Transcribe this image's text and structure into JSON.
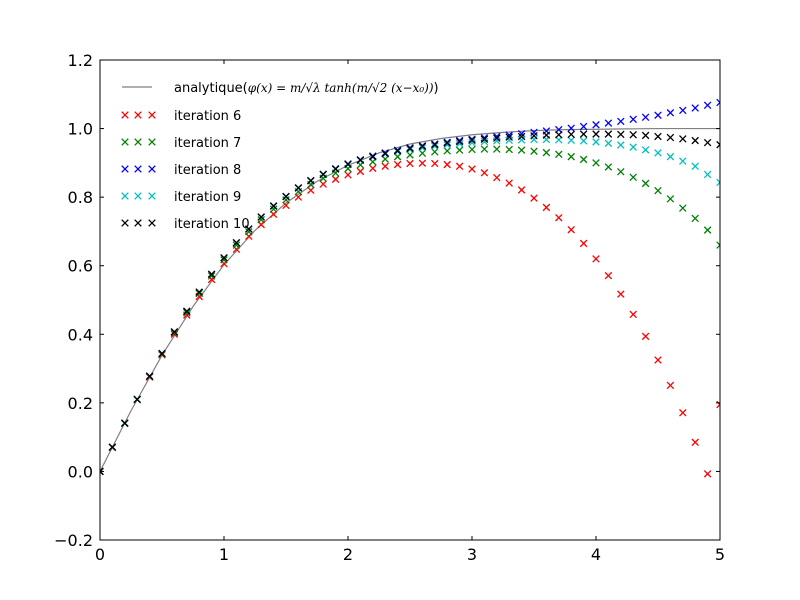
{
  "chart_data": {
    "type": "scatter",
    "xlim": [
      0,
      5
    ],
    "ylim": [
      -0.2,
      1.2
    ],
    "x_ticks": [
      0,
      1,
      2,
      3,
      4,
      5
    ],
    "y_ticks": [
      -0.2,
      0.0,
      0.2,
      0.4,
      0.6,
      0.8,
      1.0,
      1.2
    ],
    "x_tick_labels": [
      "0",
      "1",
      "2",
      "3",
      "4",
      "5"
    ],
    "y_tick_labels": [
      "−0.2",
      "0.0",
      "0.2",
      "0.4",
      "0.6",
      "0.8",
      "1.0",
      "1.2"
    ],
    "grid": false,
    "legend_position": "top-left",
    "analytic": {
      "label_prefix": "analytique(",
      "label_math": "φ(x) = m/√λ tanh(m/√2 (x−x₀))",
      "label_suffix": ")",
      "color": "#808080",
      "x": [
        0,
        0.25,
        0.5,
        0.75,
        1.0,
        1.25,
        1.5,
        1.75,
        2.0,
        2.25,
        2.5,
        2.75,
        3.0,
        3.25,
        3.5,
        3.75,
        4.0,
        4.25,
        4.5,
        4.75,
        5.0
      ],
      "y": [
        0.0,
        0.177,
        0.339,
        0.481,
        0.603,
        0.703,
        0.783,
        0.846,
        0.893,
        0.929,
        0.955,
        0.971,
        0.982,
        0.989,
        0.994,
        0.997,
        0.998,
        0.999,
        1.0,
        1.0,
        1.0
      ]
    },
    "series": [
      {
        "name": "iteration 6",
        "color": "#ff0000",
        "x": [
          0.0,
          0.1,
          0.2,
          0.3,
          0.4,
          0.5,
          0.6,
          0.7,
          0.8,
          0.9,
          1.0,
          1.1,
          1.2,
          1.3,
          1.4,
          1.5,
          1.6,
          1.7,
          1.8,
          1.9,
          2.0,
          2.1,
          2.2,
          2.3,
          2.4,
          2.5,
          2.6,
          2.7,
          2.8,
          2.9,
          3.0,
          3.1,
          3.2,
          3.3,
          3.4,
          3.5,
          3.6,
          3.7,
          3.8,
          3.9,
          4.0,
          4.1,
          4.2,
          4.3,
          4.4,
          4.5,
          4.6,
          4.7,
          4.8,
          4.9,
          5.0
        ],
        "y": [
          0.0,
          0.07,
          0.14,
          0.21,
          0.275,
          0.34,
          0.4,
          0.456,
          0.51,
          0.56,
          0.606,
          0.648,
          0.686,
          0.72,
          0.75,
          0.776,
          0.8,
          0.82,
          0.838,
          0.852,
          0.865,
          0.875,
          0.884,
          0.89,
          0.895,
          0.898,
          0.899,
          0.898,
          0.895,
          0.89,
          0.882,
          0.871,
          0.857,
          0.841,
          0.821,
          0.797,
          0.77,
          0.74,
          0.705,
          0.665,
          0.62,
          0.571,
          0.517,
          0.458,
          0.394,
          0.325,
          0.251,
          0.171,
          0.085,
          -0.007,
          0.195
        ]
      },
      {
        "name": "iteration 7",
        "color": "#008000",
        "x": [
          0.0,
          0.1,
          0.2,
          0.3,
          0.4,
          0.5,
          0.6,
          0.7,
          0.8,
          0.9,
          1.0,
          1.1,
          1.2,
          1.3,
          1.4,
          1.5,
          1.6,
          1.7,
          1.8,
          1.9,
          2.0,
          2.1,
          2.2,
          2.3,
          2.4,
          2.5,
          2.6,
          2.7,
          2.8,
          2.9,
          3.0,
          3.1,
          3.2,
          3.3,
          3.4,
          3.5,
          3.6,
          3.7,
          3.8,
          3.9,
          4.0,
          4.1,
          4.2,
          4.3,
          4.4,
          4.5,
          4.6,
          4.7,
          4.8,
          4.9,
          5.0
        ],
        "y": [
          0.0,
          0.07,
          0.14,
          0.21,
          0.277,
          0.342,
          0.404,
          0.463,
          0.519,
          0.57,
          0.617,
          0.66,
          0.699,
          0.734,
          0.765,
          0.792,
          0.816,
          0.837,
          0.855,
          0.87,
          0.883,
          0.894,
          0.903,
          0.911,
          0.918,
          0.923,
          0.928,
          0.932,
          0.935,
          0.937,
          0.939,
          0.94,
          0.94,
          0.939,
          0.937,
          0.934,
          0.93,
          0.925,
          0.918,
          0.91,
          0.9,
          0.888,
          0.874,
          0.858,
          0.84,
          0.819,
          0.795,
          0.768,
          0.738,
          0.704,
          0.66
        ]
      },
      {
        "name": "iteration 8",
        "color": "#0000ff",
        "x": [
          0.0,
          0.1,
          0.2,
          0.3,
          0.4,
          0.5,
          0.6,
          0.7,
          0.8,
          0.9,
          1.0,
          1.1,
          1.2,
          1.3,
          1.4,
          1.5,
          1.6,
          1.7,
          1.8,
          1.9,
          2.0,
          2.1,
          2.2,
          2.3,
          2.4,
          2.5,
          2.6,
          2.7,
          2.8,
          2.9,
          3.0,
          3.1,
          3.2,
          3.3,
          3.4,
          3.5,
          3.6,
          3.7,
          3.8,
          3.9,
          4.0,
          4.1,
          4.2,
          4.3,
          4.4,
          4.5,
          4.6,
          4.7,
          4.8,
          4.9,
          5.0
        ],
        "y": [
          0.0,
          0.071,
          0.141,
          0.21,
          0.278,
          0.344,
          0.407,
          0.467,
          0.523,
          0.575,
          0.623,
          0.667,
          0.707,
          0.742,
          0.774,
          0.802,
          0.827,
          0.848,
          0.867,
          0.883,
          0.897,
          0.909,
          0.92,
          0.929,
          0.937,
          0.944,
          0.95,
          0.955,
          0.96,
          0.965,
          0.969,
          0.973,
          0.977,
          0.981,
          0.985,
          0.989,
          0.993,
          0.997,
          1.001,
          1.006,
          1.011,
          1.016,
          1.021,
          1.027,
          1.033,
          1.039,
          1.046,
          1.053,
          1.06,
          1.068,
          1.076
        ]
      },
      {
        "name": "iteration 9",
        "color": "#00bfbf",
        "x": [
          0.0,
          0.1,
          0.2,
          0.3,
          0.4,
          0.5,
          0.6,
          0.7,
          0.8,
          0.9,
          1.0,
          1.1,
          1.2,
          1.3,
          1.4,
          1.5,
          1.6,
          1.7,
          1.8,
          1.9,
          2.0,
          2.1,
          2.2,
          2.3,
          2.4,
          2.5,
          2.6,
          2.7,
          2.8,
          2.9,
          3.0,
          3.1,
          3.2,
          3.3,
          3.4,
          3.5,
          3.6,
          3.7,
          3.8,
          3.9,
          4.0,
          4.1,
          4.2,
          4.3,
          4.4,
          4.5,
          4.6,
          4.7,
          4.8,
          4.9,
          5.0
        ],
        "y": [
          0.0,
          0.071,
          0.141,
          0.21,
          0.278,
          0.344,
          0.407,
          0.467,
          0.523,
          0.575,
          0.623,
          0.667,
          0.707,
          0.742,
          0.774,
          0.802,
          0.826,
          0.847,
          0.866,
          0.882,
          0.895,
          0.907,
          0.917,
          0.926,
          0.933,
          0.939,
          0.944,
          0.949,
          0.953,
          0.956,
          0.959,
          0.962,
          0.964,
          0.966,
          0.967,
          0.968,
          0.968,
          0.967,
          0.966,
          0.964,
          0.961,
          0.957,
          0.952,
          0.946,
          0.938,
          0.929,
          0.918,
          0.905,
          0.89,
          0.866,
          0.843
        ]
      },
      {
        "name": "iteration 10",
        "color": "#000000",
        "x": [
          0.0,
          0.1,
          0.2,
          0.3,
          0.4,
          0.5,
          0.6,
          0.7,
          0.8,
          0.9,
          1.0,
          1.1,
          1.2,
          1.3,
          1.4,
          1.5,
          1.6,
          1.7,
          1.8,
          1.9,
          2.0,
          2.1,
          2.2,
          2.3,
          2.4,
          2.5,
          2.6,
          2.7,
          2.8,
          2.9,
          3.0,
          3.1,
          3.2,
          3.3,
          3.4,
          3.5,
          3.6,
          3.7,
          3.8,
          3.9,
          4.0,
          4.1,
          4.2,
          4.3,
          4.4,
          4.5,
          4.6,
          4.7,
          4.8,
          4.9,
          5.0
        ],
        "y": [
          0.0,
          0.071,
          0.141,
          0.21,
          0.278,
          0.344,
          0.407,
          0.467,
          0.523,
          0.575,
          0.623,
          0.667,
          0.707,
          0.742,
          0.774,
          0.802,
          0.827,
          0.848,
          0.866,
          0.882,
          0.896,
          0.908,
          0.918,
          0.927,
          0.935,
          0.942,
          0.948,
          0.953,
          0.958,
          0.962,
          0.966,
          0.969,
          0.972,
          0.975,
          0.977,
          0.979,
          0.981,
          0.982,
          0.983,
          0.984,
          0.984,
          0.984,
          0.983,
          0.982,
          0.98,
          0.977,
          0.974,
          0.97,
          0.965,
          0.959,
          0.953
        ]
      }
    ]
  }
}
